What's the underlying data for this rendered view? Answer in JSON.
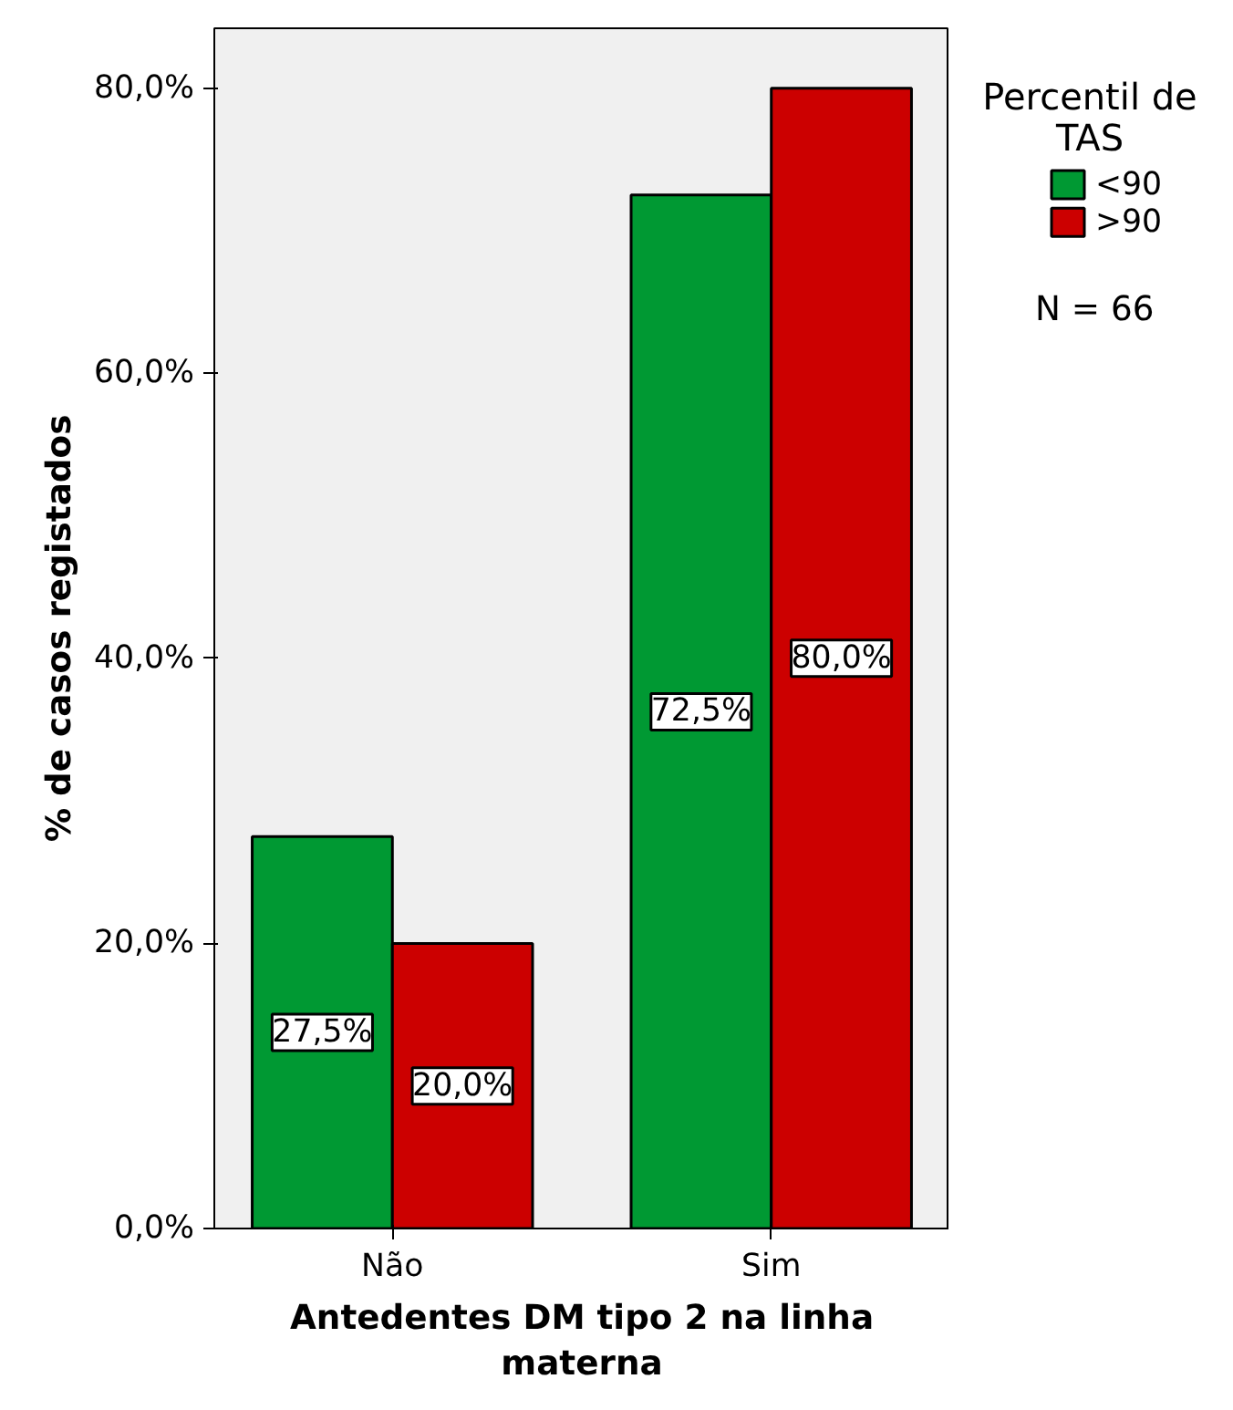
{
  "chart_data": {
    "type": "bar",
    "xlabel": "Antedentes DM tipo 2 na linha materna",
    "ylabel": "% de casos registados",
    "legend_title": "Percentil de TAS",
    "categories": [
      "Não",
      "Sim"
    ],
    "series": [
      {
        "name": "<90",
        "color": "#009933",
        "values": [
          27.5,
          72.5
        ],
        "value_labels": [
          "27,5%",
          "72,5%"
        ]
      },
      {
        "name": ">90",
        "color": "#cc0000",
        "values": [
          20.0,
          80.0
        ],
        "value_labels": [
          "20,0%",
          "80,0%"
        ]
      }
    ],
    "ylim": [
      0,
      84.2
    ],
    "yticks": [
      {
        "value": 0,
        "label": "0,0%"
      },
      {
        "value": 20,
        "label": "20,0%"
      },
      {
        "value": 40,
        "label": "40,0%"
      },
      {
        "value": 60,
        "label": "60,0%"
      },
      {
        "value": 80,
        "label": "80,0%"
      }
    ],
    "grid": false,
    "legend": "top right",
    "annotations": [
      "N = 66"
    ]
  }
}
